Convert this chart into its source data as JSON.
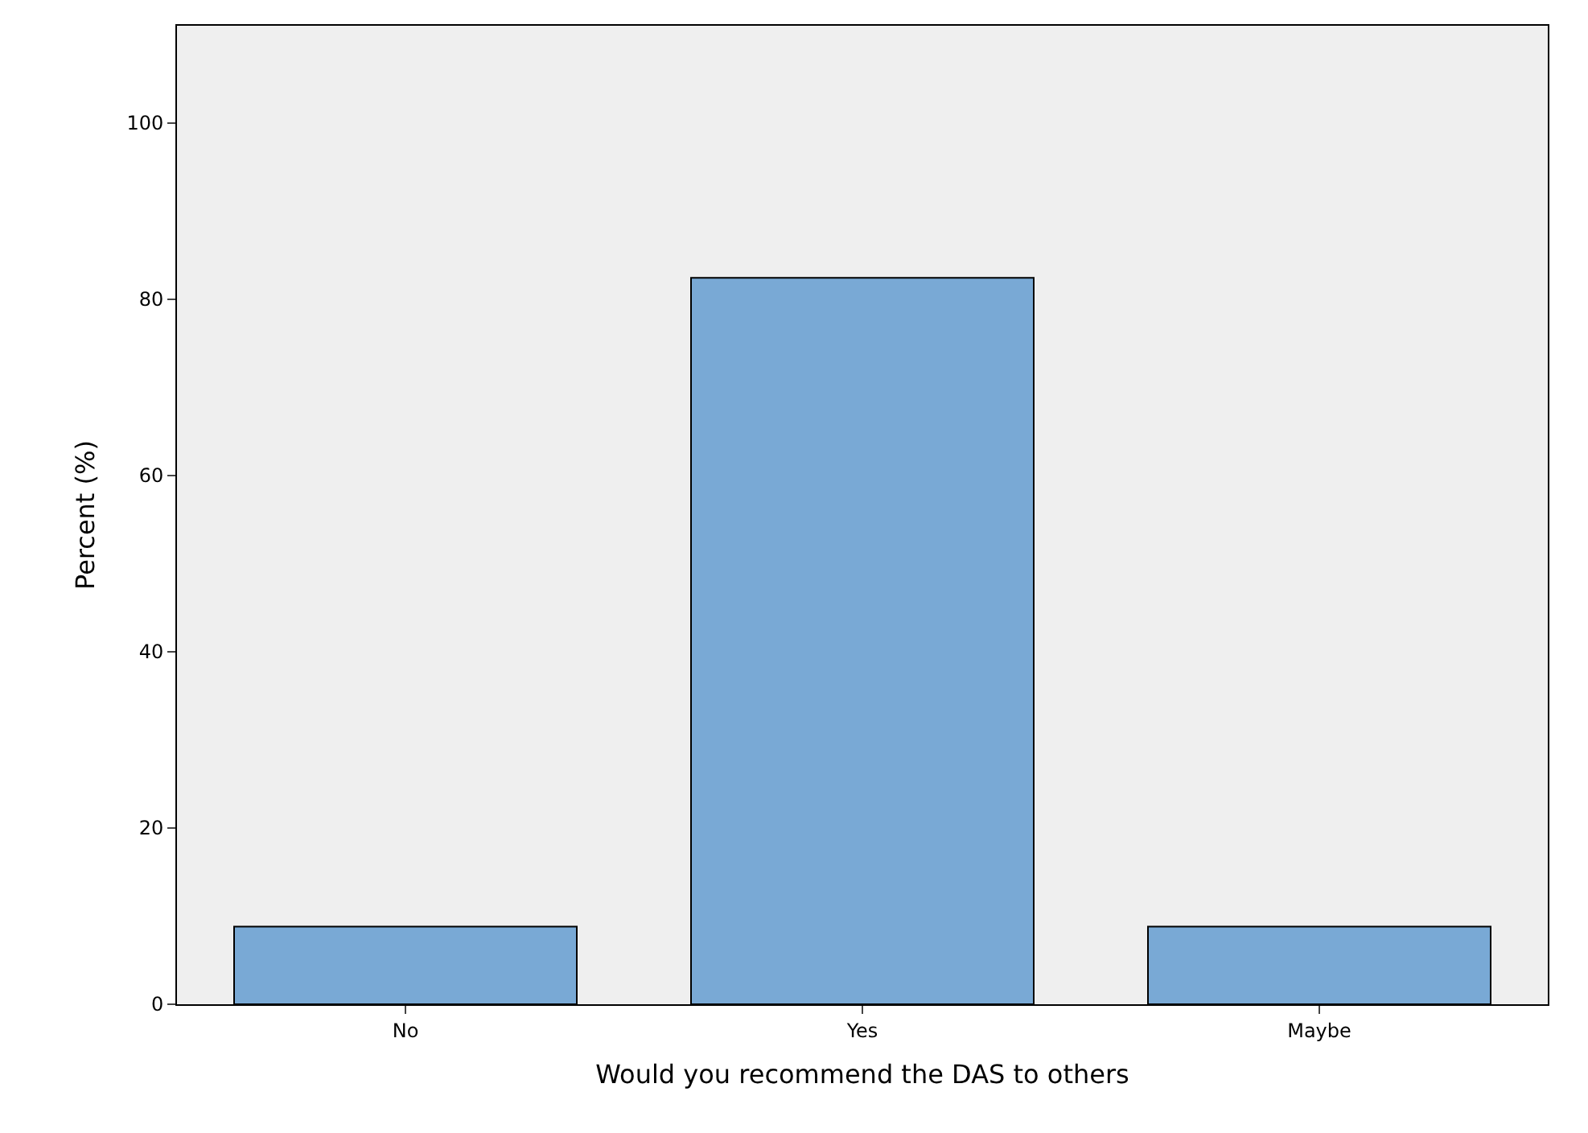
{
  "chart_data": {
    "type": "bar",
    "xlabel": "Would you recommend the DAS to others",
    "ylabel": "Percent (%)",
    "categories": [
      "No",
      "Yes",
      "Maybe"
    ],
    "series": [
      {
        "color": "#79a9d5",
        "values": [
          8.8,
          82.4,
          8.8
        ]
      }
    ],
    "ylim": [
      0,
      111
    ],
    "yticks": [
      0,
      20,
      40,
      60,
      80,
      100
    ],
    "grid": false,
    "legend": false
  }
}
